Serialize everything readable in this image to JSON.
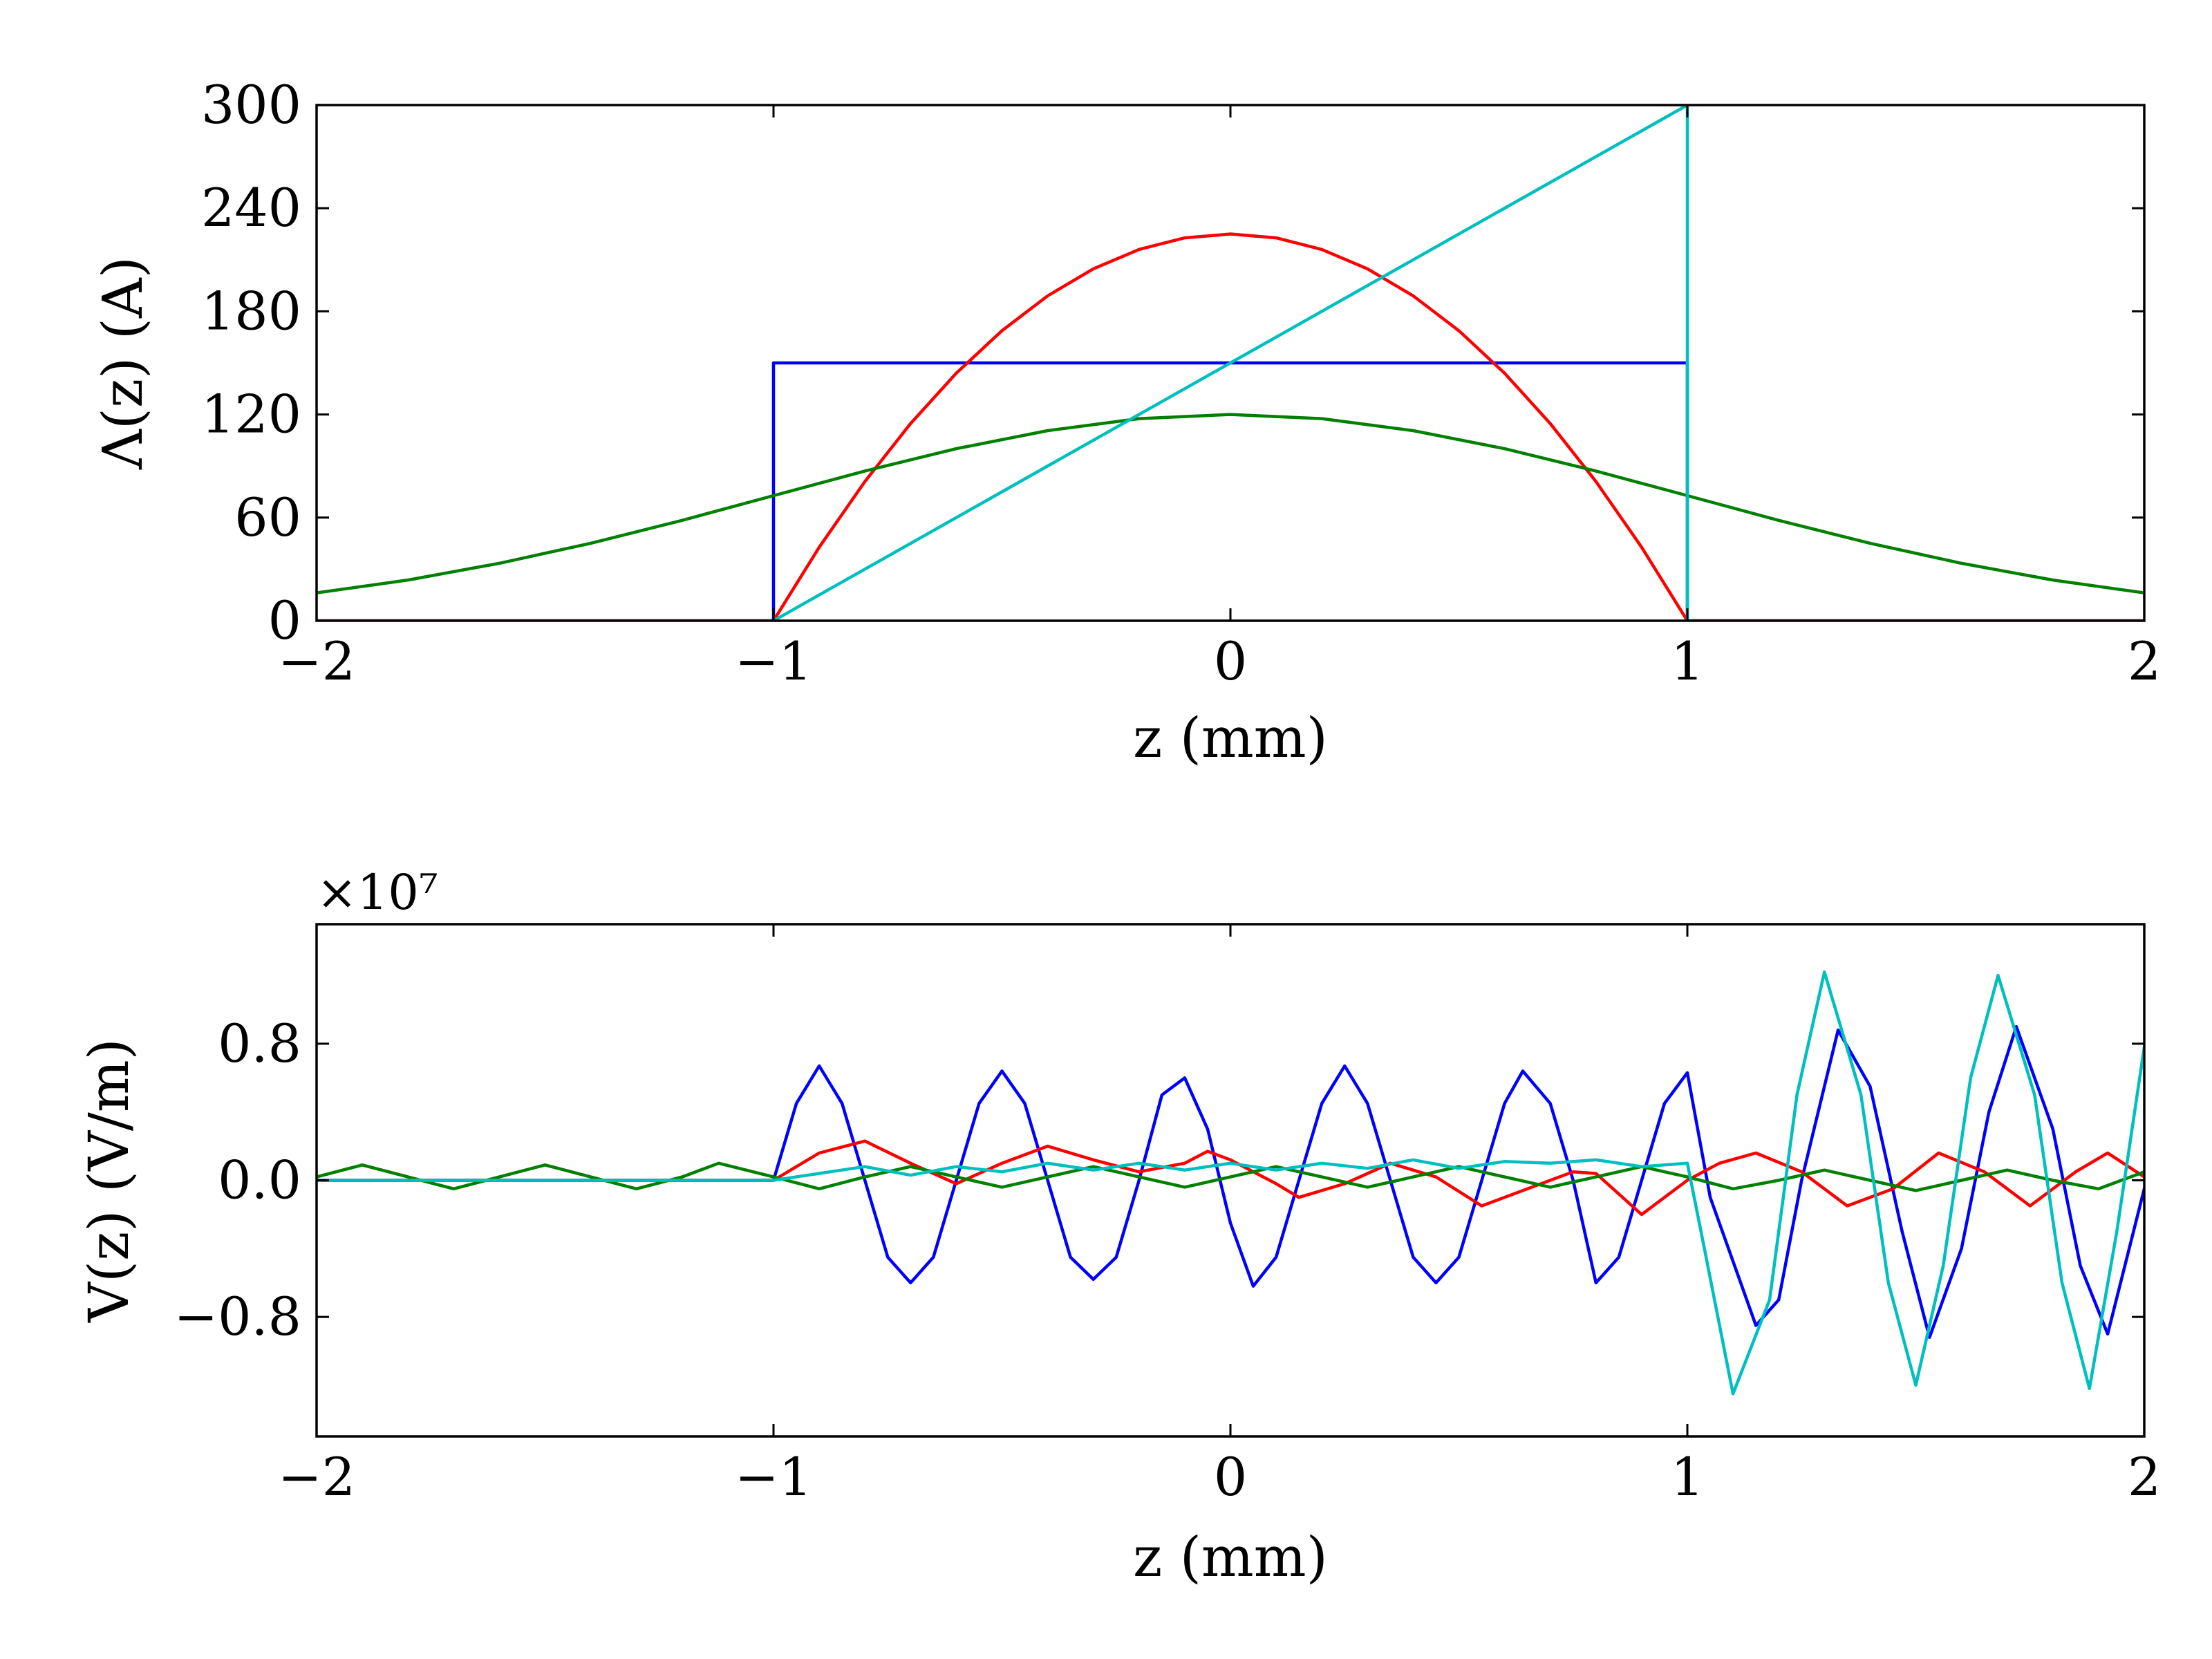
{
  "chart_data": [
    {
      "type": "line",
      "xlabel": "z (mm)",
      "ylabel": "Λ(z) (A)",
      "xlim": [
        -2,
        2
      ],
      "ylim": [
        0,
        300
      ],
      "xticks": [
        -2,
        -1,
        0,
        1,
        2
      ],
      "xtick_labels": [
        "−2",
        "−1",
        "0",
        "1",
        "2"
      ],
      "yticks": [
        0,
        60,
        120,
        180,
        240,
        300
      ],
      "ytick_labels": [
        "0",
        "60",
        "120",
        "180",
        "240",
        "300"
      ],
      "grid": false,
      "series": [
        {
          "color": "#0000ff",
          "points": [
            [
              -2,
              0
            ],
            [
              -1,
              0
            ],
            [
              -1,
              150
            ],
            [
              1,
              150
            ],
            [
              1,
              0
            ],
            [
              2,
              0
            ]
          ]
        },
        {
          "color": "#ff0000",
          "points": [
            [
              -2,
              0
            ],
            [
              -1,
              0
            ],
            [
              -0.9,
              42.75
            ],
            [
              -0.8,
              81
            ],
            [
              -0.7,
              114.75
            ],
            [
              -0.6,
              144
            ],
            [
              -0.5,
              168.75
            ],
            [
              -0.4,
              189
            ],
            [
              -0.3,
              204.75
            ],
            [
              -0.2,
              216
            ],
            [
              -0.1,
              222.75
            ],
            [
              0,
              225
            ],
            [
              0.1,
              222.75
            ],
            [
              0.2,
              216
            ],
            [
              0.3,
              204.75
            ],
            [
              0.4,
              189
            ],
            [
              0.5,
              168.75
            ],
            [
              0.6,
              144
            ],
            [
              0.7,
              114.75
            ],
            [
              0.8,
              81
            ],
            [
              0.9,
              42.75
            ],
            [
              1,
              0
            ],
            [
              2,
              0
            ]
          ]
        },
        {
          "color": "#008000",
          "points": [
            [
              -2,
              16.2
            ],
            [
              -1.8,
              23.7
            ],
            [
              -1.6,
              33.4
            ],
            [
              -1.4,
              45.1
            ],
            [
              -1.2,
              58.4
            ],
            [
              -1,
              72.8
            ],
            [
              -0.8,
              87.1
            ],
            [
              -0.6,
              100.1
            ],
            [
              -0.4,
              110.6
            ],
            [
              -0.2,
              117.6
            ],
            [
              0,
              120
            ],
            [
              0.2,
              117.6
            ],
            [
              0.4,
              110.6
            ],
            [
              0.6,
              100.1
            ],
            [
              0.8,
              87.1
            ],
            [
              1,
              72.8
            ],
            [
              1.2,
              58.4
            ],
            [
              1.4,
              45.1
            ],
            [
              1.6,
              33.4
            ],
            [
              1.8,
              23.7
            ],
            [
              2,
              16.2
            ]
          ]
        },
        {
          "color": "#00bfbf",
          "points": [
            [
              -2,
              0
            ],
            [
              -1,
              0
            ],
            [
              1,
              300
            ],
            [
              1,
              0
            ],
            [
              2,
              0
            ]
          ]
        }
      ]
    },
    {
      "type": "line",
      "xlabel": "z (mm)",
      "ylabel": "V(z) (V/m)",
      "offset_label": "×10⁷",
      "xlim": [
        -2,
        2
      ],
      "ylim": [
        -1.5,
        1.5
      ],
      "xticks": [
        -2,
        -1,
        0,
        1,
        2
      ],
      "xtick_labels": [
        "−2",
        "−1",
        "0",
        "1",
        "2"
      ],
      "yticks": [
        -0.8,
        0,
        0.8
      ],
      "ytick_labels": [
        "−0.8",
        "0.0",
        "0.8"
      ],
      "grid": false,
      "series": [
        {
          "color": "#0000ff",
          "points": [
            [
              -2,
              0
            ],
            [
              -1,
              0
            ],
            [
              -0.95,
              0.45
            ],
            [
              -0.9,
              0.67
            ],
            [
              -0.85,
              0.45
            ],
            [
              -0.8,
              0
            ],
            [
              -0.75,
              -0.45
            ],
            [
              -0.7,
              -0.6
            ],
            [
              -0.65,
              -0.45
            ],
            [
              -0.6,
              0
            ],
            [
              -0.55,
              0.45
            ],
            [
              -0.5,
              0.64
            ],
            [
              -0.45,
              0.45
            ],
            [
              -0.4,
              0
            ],
            [
              -0.35,
              -0.45
            ],
            [
              -0.3,
              -0.58
            ],
            [
              -0.25,
              -0.45
            ],
            [
              -0.2,
              0
            ],
            [
              -0.15,
              0.5
            ],
            [
              -0.1,
              0.6
            ],
            [
              -0.05,
              0.3
            ],
            [
              0,
              -0.25
            ],
            [
              0.05,
              -0.62
            ],
            [
              0.1,
              -0.45
            ],
            [
              0.15,
              0
            ],
            [
              0.2,
              0.45
            ],
            [
              0.25,
              0.67
            ],
            [
              0.3,
              0.45
            ],
            [
              0.35,
              0
            ],
            [
              0.4,
              -0.45
            ],
            [
              0.45,
              -0.6
            ],
            [
              0.5,
              -0.45
            ],
            [
              0.55,
              0
            ],
            [
              0.6,
              0.45
            ],
            [
              0.64,
              0.64
            ],
            [
              0.7,
              0.45
            ],
            [
              0.75,
              0
            ],
            [
              0.8,
              -0.6
            ],
            [
              0.85,
              -0.45
            ],
            [
              0.9,
              0
            ],
            [
              0.95,
              0.45
            ],
            [
              1,
              0.63
            ],
            [
              1.05,
              -0.1
            ],
            [
              1.15,
              -0.85
            ],
            [
              1.2,
              -0.7
            ],
            [
              1.25,
              0
            ],
            [
              1.33,
              0.88
            ],
            [
              1.4,
              0.55
            ],
            [
              1.47,
              -0.3
            ],
            [
              1.53,
              -0.92
            ],
            [
              1.6,
              -0.4
            ],
            [
              1.66,
              0.4
            ],
            [
              1.72,
              0.9
            ],
            [
              1.8,
              0.3
            ],
            [
              1.86,
              -0.5
            ],
            [
              1.92,
              -0.9
            ],
            [
              2,
              -0.05
            ]
          ]
        },
        {
          "color": "#ff0000",
          "points": [
            [
              -2,
              0
            ],
            [
              -1,
              0
            ],
            [
              -0.9,
              0.16
            ],
            [
              -0.8,
              0.23
            ],
            [
              -0.7,
              0.1
            ],
            [
              -0.6,
              -0.02
            ],
            [
              -0.5,
              0.1
            ],
            [
              -0.4,
              0.2
            ],
            [
              -0.3,
              0.12
            ],
            [
              -0.2,
              0.05
            ],
            [
              -0.1,
              0.1
            ],
            [
              -0.05,
              0.17
            ],
            [
              0,
              0.12
            ],
            [
              0.1,
              -0.02
            ],
            [
              0.15,
              -0.1
            ],
            [
              0.25,
              -0.02
            ],
            [
              0.35,
              0.1
            ],
            [
              0.45,
              0.02
            ],
            [
              0.55,
              -0.15
            ],
            [
              0.65,
              -0.05
            ],
            [
              0.75,
              0.05
            ],
            [
              0.8,
              0.04
            ],
            [
              0.9,
              -0.2
            ],
            [
              1,
              0
            ],
            [
              1.07,
              0.1
            ],
            [
              1.15,
              0.16
            ],
            [
              1.25,
              0.05
            ],
            [
              1.35,
              -0.15
            ],
            [
              1.45,
              -0.05
            ],
            [
              1.55,
              0.16
            ],
            [
              1.65,
              0.05
            ],
            [
              1.75,
              -0.15
            ],
            [
              1.85,
              0.05
            ],
            [
              1.92,
              0.16
            ],
            [
              2,
              0.02
            ]
          ]
        },
        {
          "color": "#008000",
          "points": [
            [
              -2,
              0.02
            ],
            [
              -1.9,
              0.09
            ],
            [
              -1.8,
              0.02
            ],
            [
              -1.7,
              -0.05
            ],
            [
              -1.6,
              0.02
            ],
            [
              -1.5,
              0.09
            ],
            [
              -1.4,
              0.02
            ],
            [
              -1.3,
              -0.05
            ],
            [
              -1.2,
              0.02
            ],
            [
              -1.12,
              0.1
            ],
            [
              -1,
              0.02
            ],
            [
              -0.9,
              -0.05
            ],
            [
              -0.8,
              0.02
            ],
            [
              -0.7,
              0.08
            ],
            [
              -0.6,
              0.02
            ],
            [
              -0.5,
              -0.04
            ],
            [
              -0.4,
              0.02
            ],
            [
              -0.3,
              0.08
            ],
            [
              -0.2,
              0.02
            ],
            [
              -0.1,
              -0.04
            ],
            [
              0,
              0.02
            ],
            [
              0.1,
              0.08
            ],
            [
              0.2,
              0.02
            ],
            [
              0.3,
              -0.04
            ],
            [
              0.4,
              0.02
            ],
            [
              0.5,
              0.08
            ],
            [
              0.6,
              0.02
            ],
            [
              0.7,
              -0.04
            ],
            [
              0.8,
              0.02
            ],
            [
              0.9,
              0.08
            ],
            [
              1,
              0.02
            ],
            [
              1.1,
              -0.05
            ],
            [
              1.2,
              0
            ],
            [
              1.3,
              0.06
            ],
            [
              1.4,
              0
            ],
            [
              1.5,
              -0.06
            ],
            [
              1.6,
              0
            ],
            [
              1.7,
              0.06
            ],
            [
              1.8,
              0
            ],
            [
              1.9,
              -0.05
            ],
            [
              2,
              0.05
            ]
          ]
        },
        {
          "color": "#00bfbf",
          "points": [
            [
              -2,
              0
            ],
            [
              -1,
              0
            ],
            [
              -0.8,
              0.08
            ],
            [
              -0.7,
              0.03
            ],
            [
              -0.6,
              0.08
            ],
            [
              -0.5,
              0.05
            ],
            [
              -0.4,
              0.1
            ],
            [
              -0.3,
              0.06
            ],
            [
              -0.2,
              0.1
            ],
            [
              -0.1,
              0.06
            ],
            [
              0,
              0.1
            ],
            [
              0.1,
              0.06
            ],
            [
              0.2,
              0.1
            ],
            [
              0.3,
              0.07
            ],
            [
              0.4,
              0.12
            ],
            [
              0.5,
              0.07
            ],
            [
              0.6,
              0.11
            ],
            [
              0.7,
              0.1
            ],
            [
              0.8,
              0.12
            ],
            [
              0.9,
              0.08
            ],
            [
              1,
              0.1
            ],
            [
              1.03,
              -0.3
            ],
            [
              1.1,
              -1.25
            ],
            [
              1.18,
              -0.7
            ],
            [
              1.24,
              0.5
            ],
            [
              1.3,
              1.22
            ],
            [
              1.38,
              0.5
            ],
            [
              1.44,
              -0.6
            ],
            [
              1.5,
              -1.2
            ],
            [
              1.56,
              -0.5
            ],
            [
              1.62,
              0.6
            ],
            [
              1.68,
              1.2
            ],
            [
              1.76,
              0.5
            ],
            [
              1.82,
              -0.6
            ],
            [
              1.88,
              -1.22
            ],
            [
              1.94,
              -0.3
            ],
            [
              2,
              0.78
            ]
          ]
        }
      ]
    }
  ]
}
